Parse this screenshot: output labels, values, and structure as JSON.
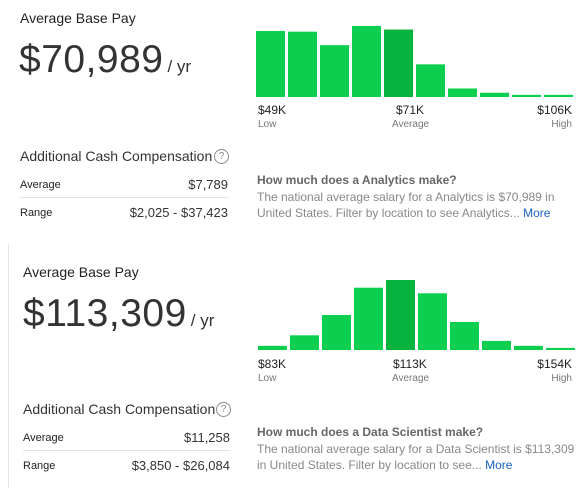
{
  "cards": [
    {
      "base_pay_label": "Average Base Pay",
      "amount": "$70,989",
      "per": "/ yr",
      "chart_data": {
        "type": "bar",
        "values": [
          0.93,
          0.92,
          0.73,
          1.0,
          0.95,
          0.46,
          0.12,
          0.06,
          0.03,
          0.03
        ],
        "highlight_index": 4,
        "ticks": [
          {
            "value": "$49K",
            "sub": "Low"
          },
          {
            "value": "$71K",
            "sub": "Average"
          },
          {
            "value": "$106K",
            "sub": "High"
          }
        ]
      },
      "cash": {
        "title": "Additional Cash Compensation",
        "help": "?",
        "rows": [
          {
            "label": "Average",
            "value": "$7,789"
          },
          {
            "label": "Range",
            "value": "$2,025 - $37,423"
          }
        ]
      },
      "question": "How much does a Analytics make?",
      "description": "The national average salary for a Analytics is $70,989 in United States. Filter by location to see Analytics...",
      "more": "More"
    },
    {
      "base_pay_label": "Average Base Pay",
      "amount": "$113,309",
      "per": "/ yr",
      "chart_data": {
        "type": "bar",
        "values": [
          0.06,
          0.21,
          0.5,
          0.89,
          1.0,
          0.81,
          0.4,
          0.13,
          0.06,
          0.03
        ],
        "highlight_index": 4,
        "ticks": [
          {
            "value": "$83K",
            "sub": "Low"
          },
          {
            "value": "$113K",
            "sub": "Average"
          },
          {
            "value": "$154K",
            "sub": "High"
          }
        ]
      },
      "cash": {
        "title": "Additional Cash Compensation",
        "help": "?",
        "rows": [
          {
            "label": "Average",
            "value": "$11,258"
          },
          {
            "label": "Range",
            "value": "$3,850 - $26,084"
          }
        ]
      },
      "question": "How much does a Data Scientist make?",
      "description": "The national average salary for a Data Scientist is $113,309 in United States. Filter by location to see...",
      "more": "More"
    }
  ],
  "colors": {
    "bar": "#0ccf4f",
    "bar_highlight": "#05b33e",
    "link": "#1861bf"
  }
}
